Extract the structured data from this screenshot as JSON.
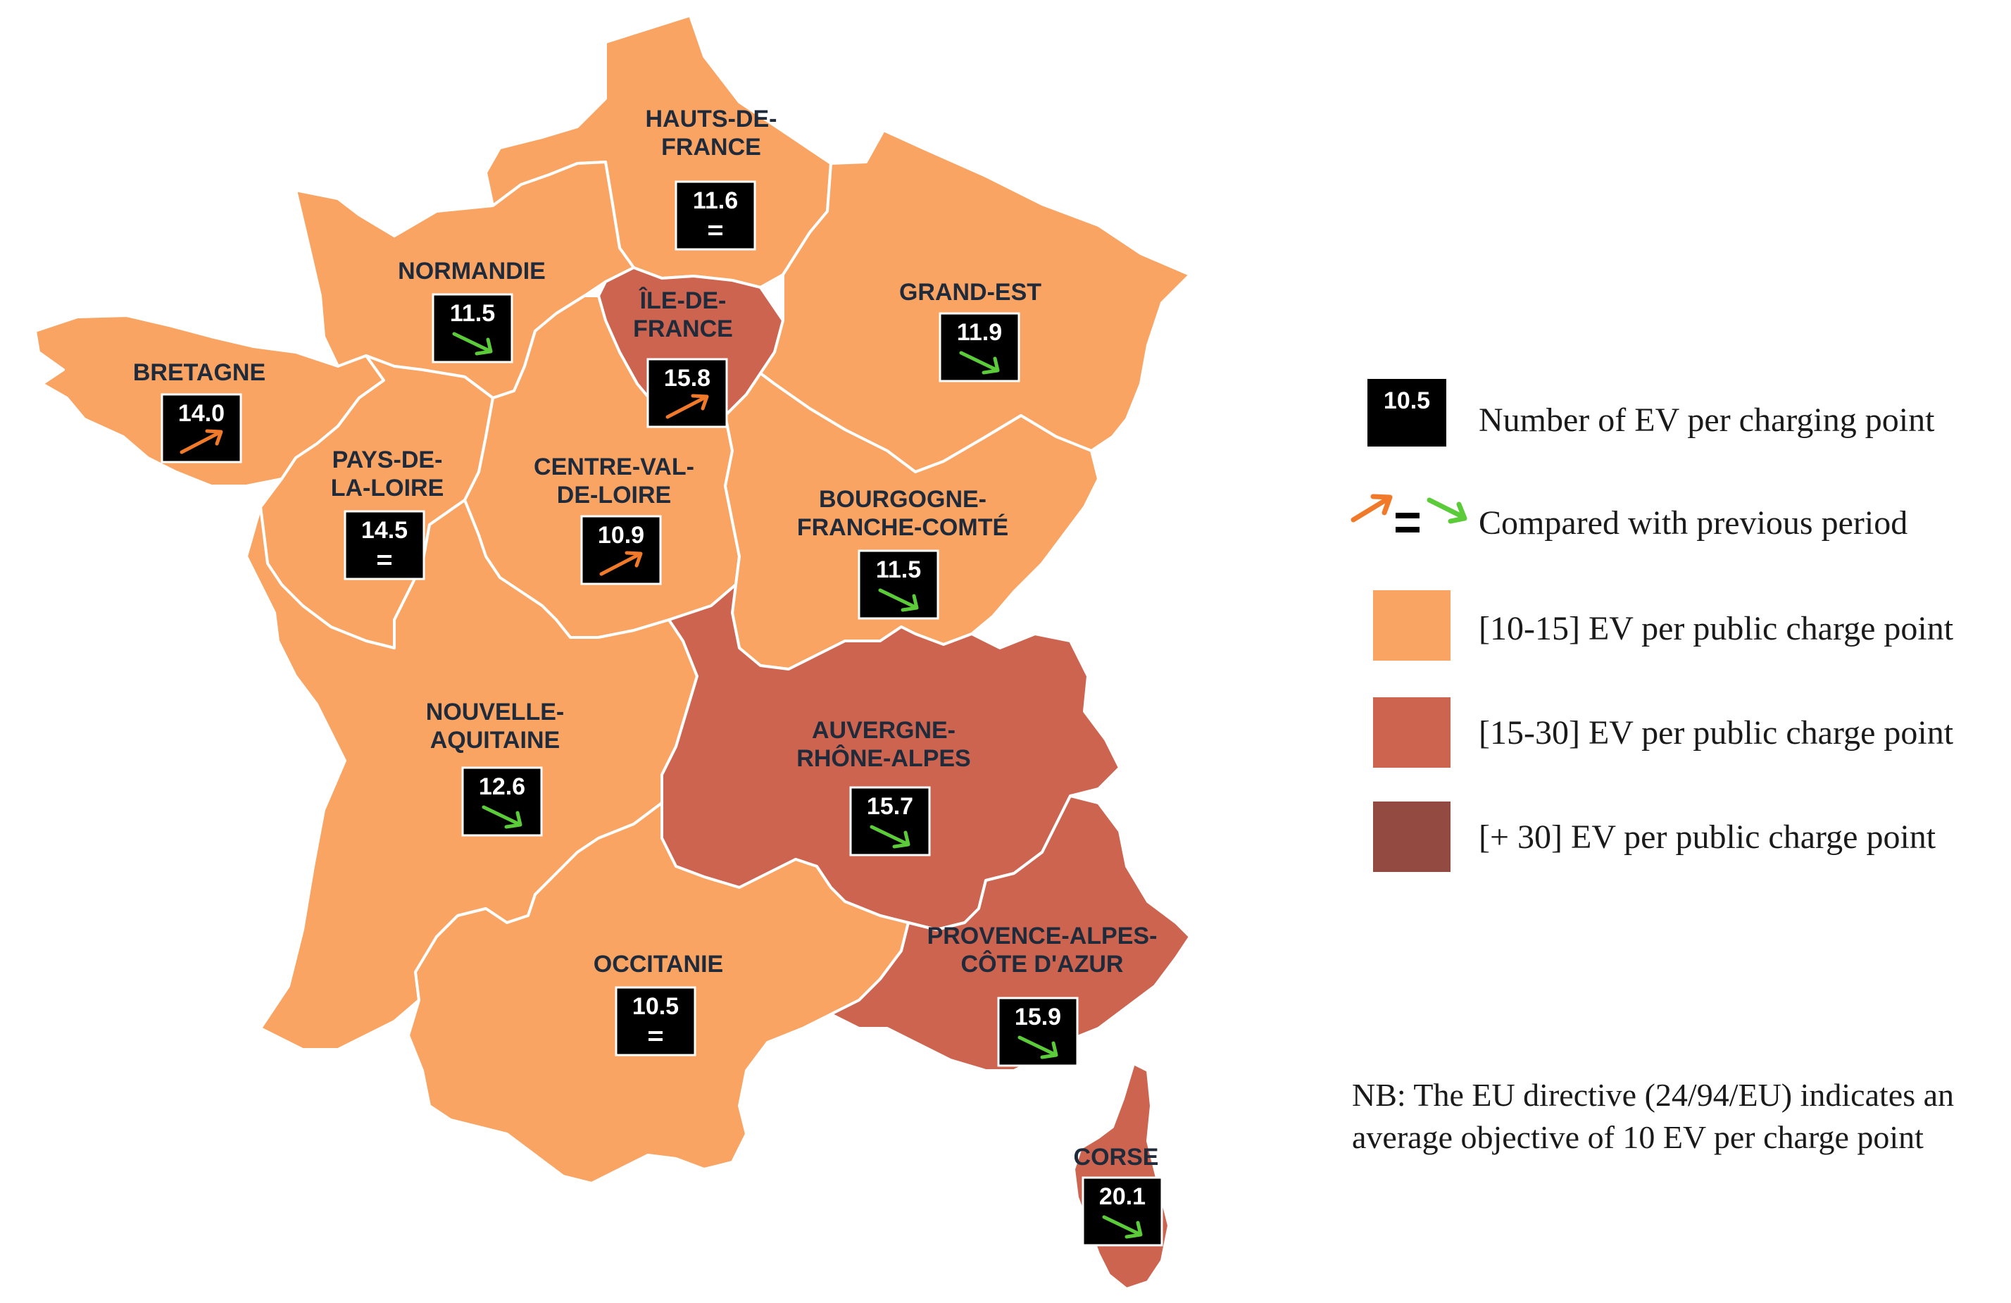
{
  "colors": {
    "low": "#f9a463",
    "mid": "#cd6450",
    "high": "#934a40",
    "border": "#ffffff",
    "up_arrow": "#f07a2a",
    "down_arrow": "#5ccb3a",
    "box": "#000000"
  },
  "regions": [
    {
      "id": "hauts-de-france",
      "label": [
        "HAUTS-DE-",
        "FRANCE"
      ],
      "value": "11.6",
      "trend": "equal",
      "class": "low"
    },
    {
      "id": "normandie",
      "label": [
        "NORMANDIE"
      ],
      "value": "11.5",
      "trend": "down",
      "class": "low"
    },
    {
      "id": "ile-de-france",
      "label": [
        "ÎLE-DE-",
        "FRANCE"
      ],
      "value": "15.8",
      "trend": "up",
      "class": "mid"
    },
    {
      "id": "grand-est",
      "label": [
        "GRAND-EST"
      ],
      "value": "11.9",
      "trend": "down",
      "class": "low"
    },
    {
      "id": "bretagne",
      "label": [
        "BRETAGNE"
      ],
      "value": "14.0",
      "trend": "up",
      "class": "low"
    },
    {
      "id": "pays-de-la-loire",
      "label": [
        "PAYS-DE-",
        "LA-LOIRE"
      ],
      "value": "14.5",
      "trend": "equal",
      "class": "low"
    },
    {
      "id": "centre-val-de-loire",
      "label": [
        "CENTRE-VAL-",
        "DE-LOIRE"
      ],
      "value": "10.9",
      "trend": "up",
      "class": "low"
    },
    {
      "id": "bourgogne-franche-comte",
      "label": [
        "BOURGOGNE-",
        "FRANCHE-COMTÉ"
      ],
      "value": "11.5",
      "trend": "down",
      "class": "low"
    },
    {
      "id": "nouvelle-aquitaine",
      "label": [
        "NOUVELLE-",
        "AQUITAINE"
      ],
      "value": "12.6",
      "trend": "down",
      "class": "low"
    },
    {
      "id": "auvergne-rhone-alpes",
      "label": [
        "AUVERGNE-",
        "RHÔNE-ALPES"
      ],
      "value": "15.7",
      "trend": "down",
      "class": "mid"
    },
    {
      "id": "occitanie",
      "label": [
        "OCCITANIE"
      ],
      "value": "10.5",
      "trend": "equal",
      "class": "low"
    },
    {
      "id": "provence-alpes-cote-d-azur",
      "label": [
        "PROVENCE-ALPES-",
        "CÔTE D'AZUR"
      ],
      "value": "15.9",
      "trend": "down",
      "class": "mid"
    },
    {
      "id": "corse",
      "label": [
        "CORSE"
      ],
      "value": "20.1",
      "trend": "down",
      "class": "mid"
    }
  ],
  "legend": {
    "sample_value": "10.5",
    "number_label": "Number of EV per charging point",
    "compare_label": "Compared with previous period",
    "class_low": "[10-15] EV per public charge point",
    "class_mid": "[15-30] EV per public charge point",
    "class_high": "[+ 30] EV per public charge point"
  },
  "note": "NB: The EU directive (24/94/EU) indicates an average objective of 10 EV per charge point"
}
